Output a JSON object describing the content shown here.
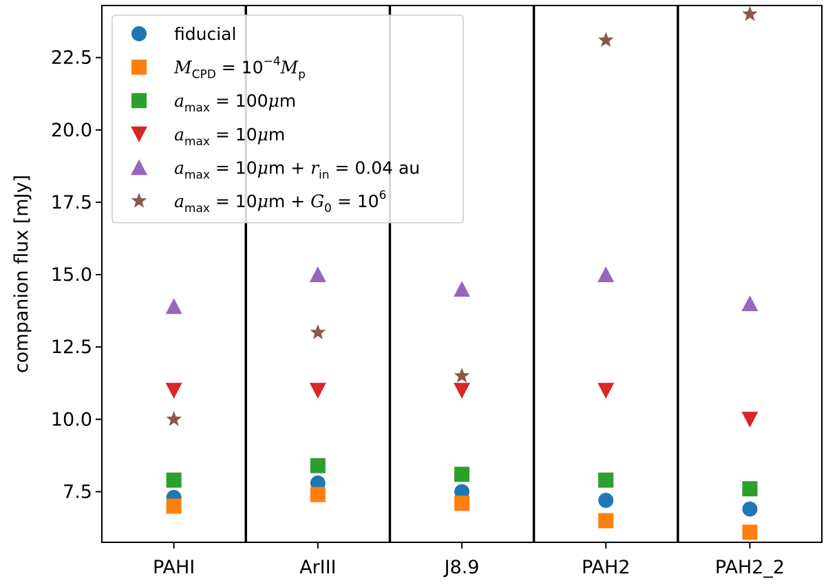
{
  "chart_data": {
    "type": "scatter",
    "title": "",
    "xlabel": "",
    "ylabel": "companion flux [mJy]",
    "categories": [
      "PAHI",
      "ArIII",
      "J8.9",
      "PAH2",
      "PAH2_2"
    ],
    "ylim": [
      5.75,
      24.3
    ],
    "yticks": [
      7.5,
      10.0,
      12.5,
      15.0,
      17.5,
      20.0,
      22.5
    ],
    "ytick_labels": [
      "7.5",
      "10.0",
      "12.5",
      "15.0",
      "17.5",
      "20.0",
      "22.5"
    ],
    "grid": false,
    "category_separators": true,
    "legend_position": "top-left",
    "series": [
      {
        "name": "fiducial",
        "marker": "circle",
        "color": "#1f77b4",
        "values": [
          7.3,
          7.8,
          7.5,
          7.2,
          6.9
        ],
        "label_parts": [
          {
            "t": "fiducial",
            "s": "plain"
          }
        ]
      },
      {
        "name": "M_CPD = 10^-4 M_p",
        "marker": "square",
        "color": "#ff7f0e",
        "values": [
          7.0,
          7.4,
          7.1,
          6.5,
          6.1
        ],
        "label_parts": [
          {
            "t": "M",
            "s": "math"
          },
          {
            "t": "CPD",
            "s": "sub"
          },
          {
            "t": " = 10",
            "s": "plain"
          },
          {
            "t": "−4",
            "s": "sup"
          },
          {
            "t": "M",
            "s": "math"
          },
          {
            "t": "p",
            "s": "sub"
          }
        ]
      },
      {
        "name": "a_max = 100μm",
        "marker": "square",
        "color": "#2ca02c",
        "values": [
          7.9,
          8.4,
          8.1,
          7.9,
          7.6
        ],
        "label_parts": [
          {
            "t": "a",
            "s": "math"
          },
          {
            "t": "max",
            "s": "sub"
          },
          {
            "t": " = 100",
            "s": "plain"
          },
          {
            "t": "μ",
            "s": "math"
          },
          {
            "t": "m",
            "s": "plain"
          }
        ]
      },
      {
        "name": "a_max = 10μm",
        "marker": "triangle-down",
        "color": "#d62728",
        "values": [
          11.0,
          11.0,
          11.0,
          11.0,
          10.0
        ],
        "label_parts": [
          {
            "t": "a",
            "s": "math"
          },
          {
            "t": "max",
            "s": "sub"
          },
          {
            "t": " = 10",
            "s": "plain"
          },
          {
            "t": "μ",
            "s": "math"
          },
          {
            "t": "m",
            "s": "plain"
          }
        ]
      },
      {
        "name": "a_max = 10μm + r_in = 0.04 au",
        "marker": "triangle-up",
        "color": "#9467bd",
        "values": [
          13.9,
          15.0,
          14.5,
          15.0,
          14.0
        ],
        "label_parts": [
          {
            "t": "a",
            "s": "math"
          },
          {
            "t": "max",
            "s": "sub"
          },
          {
            "t": " = 10",
            "s": "plain"
          },
          {
            "t": "μ",
            "s": "math"
          },
          {
            "t": "m + ",
            "s": "plain"
          },
          {
            "t": "r",
            "s": "math"
          },
          {
            "t": "in",
            "s": "sub"
          },
          {
            "t": " = 0.04 au",
            "s": "plain"
          }
        ]
      },
      {
        "name": "a_max = 10μm + G_0 = 10^6",
        "marker": "star",
        "color": "#8c564b",
        "values": [
          10.0,
          13.0,
          11.5,
          23.1,
          24.0
        ],
        "label_parts": [
          {
            "t": "a",
            "s": "math"
          },
          {
            "t": "max",
            "s": "sub"
          },
          {
            "t": " = 10",
            "s": "plain"
          },
          {
            "t": "μ",
            "s": "math"
          },
          {
            "t": "m + ",
            "s": "plain"
          },
          {
            "t": "G",
            "s": "math"
          },
          {
            "t": "0",
            "s": "sub"
          },
          {
            "t": " = 10",
            "s": "plain"
          },
          {
            "t": "6",
            "s": "sup"
          }
        ]
      }
    ]
  }
}
